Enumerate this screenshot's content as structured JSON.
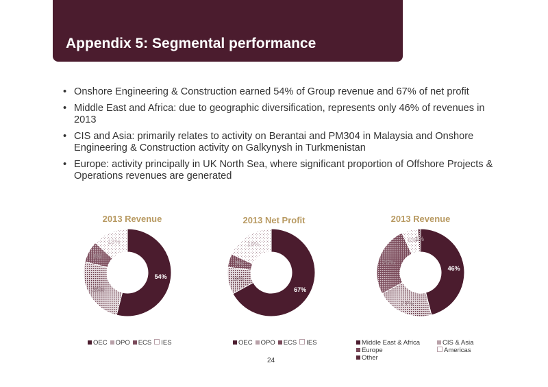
{
  "header": {
    "title": "Appendix 5: Segmental performance"
  },
  "bullets": [
    "Onshore Engineering & Construction earned 54% of Group revenue and 67% of net profit",
    "Middle East and Africa: due to geographic diversification, represents only 46% of revenues in 2013",
    "CIS and Asia: primarily relates to activity on Berantai and PM304 in Malaysia and Onshore Engineering & Construction activity on Galkynysh in Turkmenistan",
    "Europe: activity principally in UK North Sea, where significant proportion of Offshore Projects & Operations revenues are generated"
  ],
  "bullet_marker": "•",
  "colors": {
    "accent": "#4b1c2e",
    "chart_title": "#b89a62"
  },
  "chart_data": [
    {
      "type": "pie",
      "title": "2013 Revenue",
      "categories": [
        "OEC",
        "OPO",
        "ECS",
        "IES"
      ],
      "values": [
        54,
        25,
        8,
        13
      ],
      "labels": [
        "54%",
        "25%",
        "8%",
        "13%"
      ],
      "legend": [
        "OEC",
        "OPO",
        "ECS",
        "IES"
      ],
      "legend_position": "bottom"
    },
    {
      "type": "pie",
      "title": "2013 Net Profit",
      "categories": [
        "OEC",
        "OPO",
        "ECS",
        "IES"
      ],
      "values": [
        67,
        10,
        5,
        18
      ],
      "labels": [
        "67%",
        "10%",
        "5%",
        "18%"
      ],
      "legend": [
        "OEC",
        "OPO",
        "ECS",
        "IES"
      ],
      "legend_position": "bottom"
    },
    {
      "type": "pie",
      "title": "2013 Revenue",
      "categories": [
        "Middle East & Africa",
        "CIS & Asia",
        "Europe",
        "Americas",
        "Other"
      ],
      "values": [
        46,
        21,
        26,
        6,
        1
      ],
      "labels": [
        "46%",
        "21%",
        "26%",
        "6%",
        "1%"
      ],
      "legend": [
        "Middle East & Africa",
        "CIS & Asia",
        "Europe",
        "Americas",
        "Other"
      ],
      "legend_position": "bottom"
    }
  ],
  "footer": {
    "page_number": "24"
  }
}
